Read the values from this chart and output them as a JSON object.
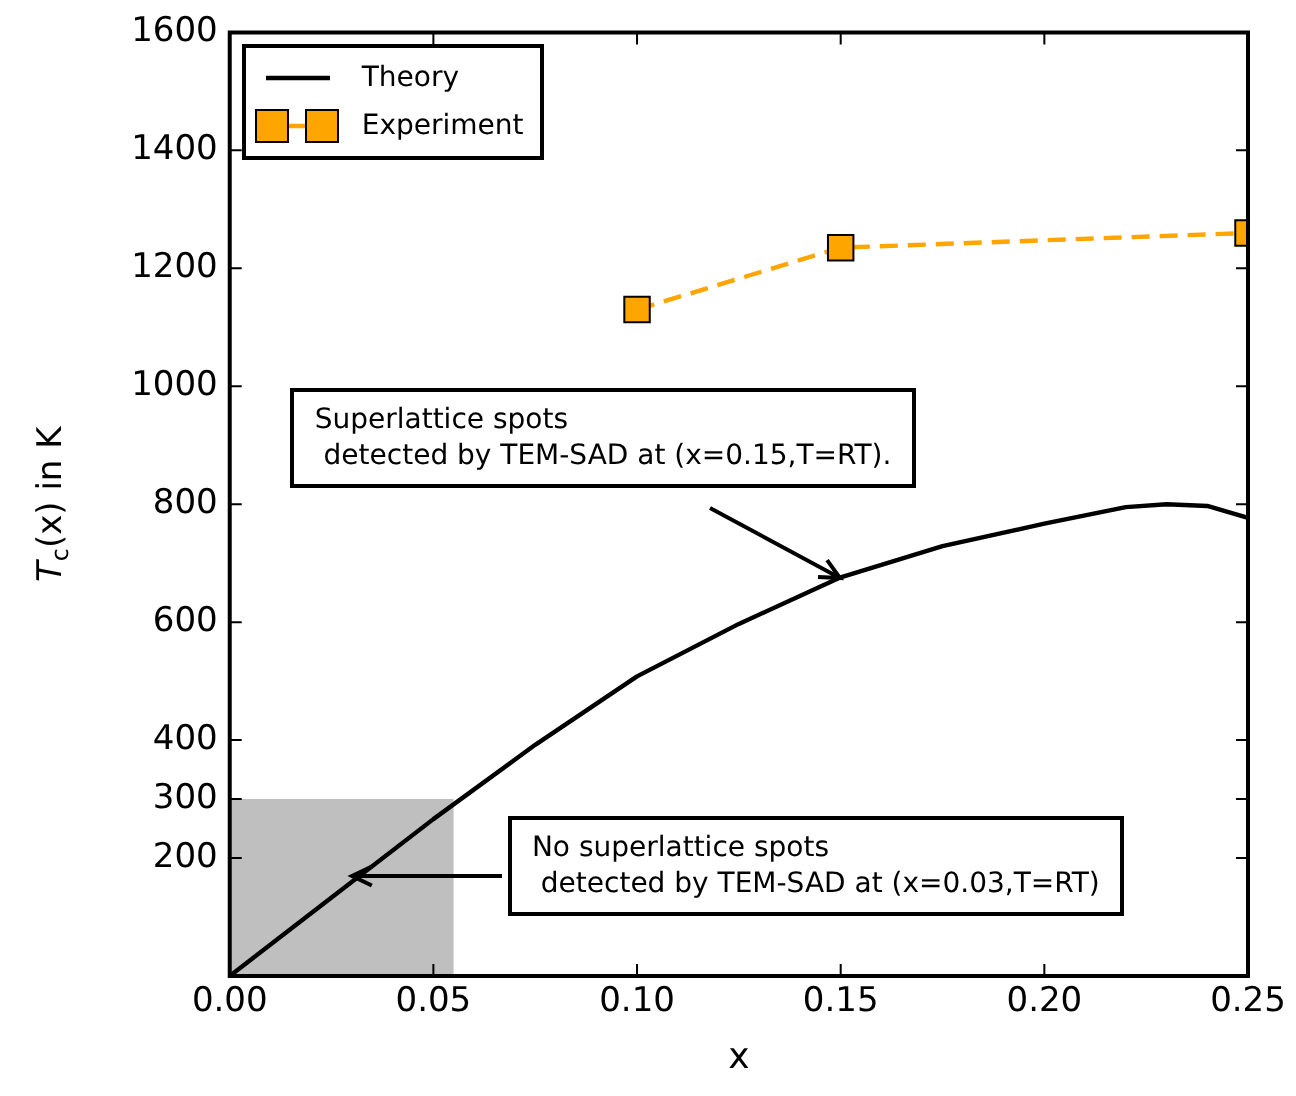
{
  "chart_data": {
    "type": "line",
    "xlabel": "x",
    "ylabel": "T$_{c}$(x) in K",
    "xlim": [
      0,
      0.25
    ],
    "xticks": [
      {
        "value": 0,
        "label": "0.00"
      },
      {
        "value": 0.05,
        "label": "0.05"
      },
      {
        "value": 0.1,
        "label": "0.10"
      },
      {
        "value": 0.15,
        "label": "0.15"
      },
      {
        "value": 0.2,
        "label": "0.20"
      },
      {
        "value": 0.25,
        "label": "0.25"
      }
    ],
    "ylim": [
      0,
      1600
    ],
    "yticks": [
      200,
      300,
      400,
      600,
      800,
      1000,
      1200,
      1400,
      1600
    ],
    "grid": false,
    "legend": "top left",
    "series": [
      {
        "type": "area",
        "color": "#bfbfbf",
        "x": [
          0,
          0.055
        ],
        "values": [
          300,
          300
        ]
      },
      {
        "name": "Theory",
        "type": "line",
        "color": "#000000",
        "marker": "none",
        "line_style": "solid",
        "x": [
          0,
          0.025,
          0.05,
          0.075,
          0.1,
          0.125,
          0.15,
          0.175,
          0.2,
          0.22,
          0.23,
          0.24,
          0.25
        ],
        "values": [
          0,
          133,
          266,
          392,
          508,
          597,
          676,
          729,
          767,
          795,
          800,
          797,
          777
        ]
      },
      {
        "name": "Experiment",
        "type": "line",
        "color": "#ffa500",
        "marker": "square",
        "line_style": "dashed",
        "x": [
          0.1,
          0.15,
          0.25
        ],
        "values": [
          1130,
          1235,
          1260
        ]
      }
    ],
    "annotations": [
      {
        "text": "Superlattice spots\n detected by TEM-SAD at (x=0.15,T=RT).",
        "x": 0.15,
        "y": 676
      },
      {
        "text": "No superlattice spots\n detected by TEM-SAD at (x=0.03,T=RT)",
        "x": 0.03,
        "y": 170
      }
    ]
  }
}
